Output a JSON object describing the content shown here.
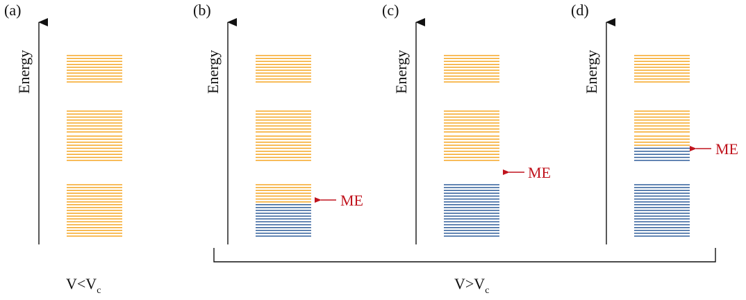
{
  "colors": {
    "unoccupied": "#f5a623",
    "occupied": "#2f5d9a",
    "mobility_edge": "#c0141e",
    "axis": "#111111"
  },
  "axis_label": "Energy",
  "mobility_edge_label": "ME",
  "panels": [
    {
      "label": "(a)",
      "blue_level": 0,
      "mobility_edge_marker": null
    },
    {
      "label": "(b)",
      "blue_level": 0.65,
      "mobility_edge_marker": "inside-lowest-band"
    },
    {
      "label": "(c)",
      "blue_level": 1,
      "mobility_edge_marker": "gap-above-lowest-band"
    },
    {
      "label": "(d)",
      "blue_level": 1.3,
      "mobility_edge_marker": "inside-middle-band"
    }
  ],
  "captions": {
    "left": {
      "main": "V<V",
      "sub": "c"
    },
    "right": {
      "main": "V>V",
      "sub": "c"
    }
  }
}
